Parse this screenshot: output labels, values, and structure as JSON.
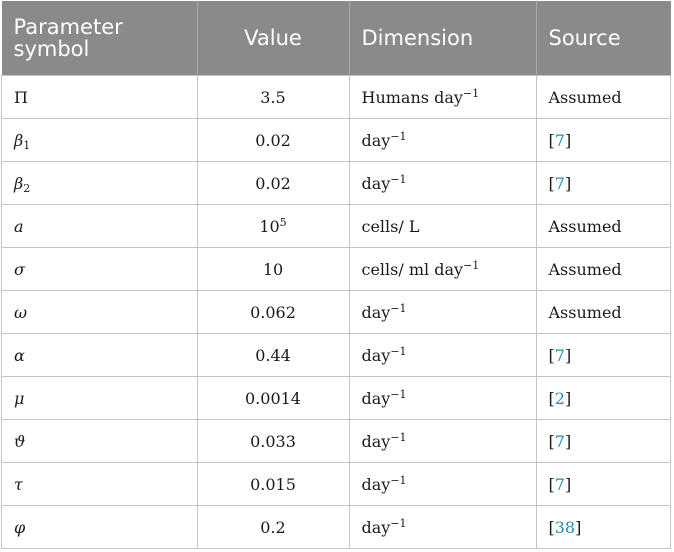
{
  "table": {
    "headers": {
      "symbol_line1": "Parameter",
      "symbol_line2": "symbol",
      "value": "Value",
      "dimension": "Dimension",
      "source": "Source"
    },
    "rows": [
      {
        "symbol": "Π",
        "sub": "",
        "value": "3.5",
        "value_sup": "",
        "dim": "Humans day",
        "dim_sup": "−1",
        "source_text": "Assumed",
        "ref": ""
      },
      {
        "symbol": "β",
        "sub": "1",
        "value": "0.02",
        "value_sup": "",
        "dim": "day",
        "dim_sup": "−1",
        "source_text": "",
        "ref": "7"
      },
      {
        "symbol": "β",
        "sub": "2",
        "value": "0.02",
        "value_sup": "",
        "dim": "day",
        "dim_sup": "−1",
        "source_text": "",
        "ref": "7"
      },
      {
        "symbol": "a",
        "sub": "",
        "value": "10",
        "value_sup": "5",
        "dim": "cells/ L",
        "dim_sup": "",
        "source_text": "Assumed",
        "ref": ""
      },
      {
        "symbol": "σ",
        "sub": "",
        "value": "10",
        "value_sup": "",
        "dim": "cells/ ml day",
        "dim_sup": "−1",
        "source_text": "Assumed",
        "ref": ""
      },
      {
        "symbol": "ω",
        "sub": "",
        "value": "0.062",
        "value_sup": "",
        "dim": "day",
        "dim_sup": "−1",
        "source_text": "Assumed",
        "ref": ""
      },
      {
        "symbol": "α",
        "sub": "",
        "value": "0.44",
        "value_sup": "",
        "dim": "day",
        "dim_sup": "−1",
        "source_text": "",
        "ref": "7"
      },
      {
        "symbol": "μ",
        "sub": "",
        "value": "0.0014",
        "value_sup": "",
        "dim": "day",
        "dim_sup": "−1",
        "source_text": "",
        "ref": "2"
      },
      {
        "symbol": "ϑ",
        "sub": "",
        "value": "0.033",
        "value_sup": "",
        "dim": "day",
        "dim_sup": "−1",
        "source_text": "",
        "ref": "7"
      },
      {
        "symbol": "τ",
        "sub": "",
        "value": "0.015",
        "value_sup": "",
        "dim": "day",
        "dim_sup": "−1",
        "source_text": "",
        "ref": "7"
      },
      {
        "symbol": "φ",
        "sub": "",
        "value": "0.2",
        "value_sup": "",
        "dim": "day",
        "dim_sup": "−1",
        "source_text": "",
        "ref": "38"
      }
    ]
  },
  "colors": {
    "header_bg": "#8a8a8a",
    "header_text": "#ffffff",
    "link": "#1a8fb5",
    "grid": "#c4c4c4"
  }
}
